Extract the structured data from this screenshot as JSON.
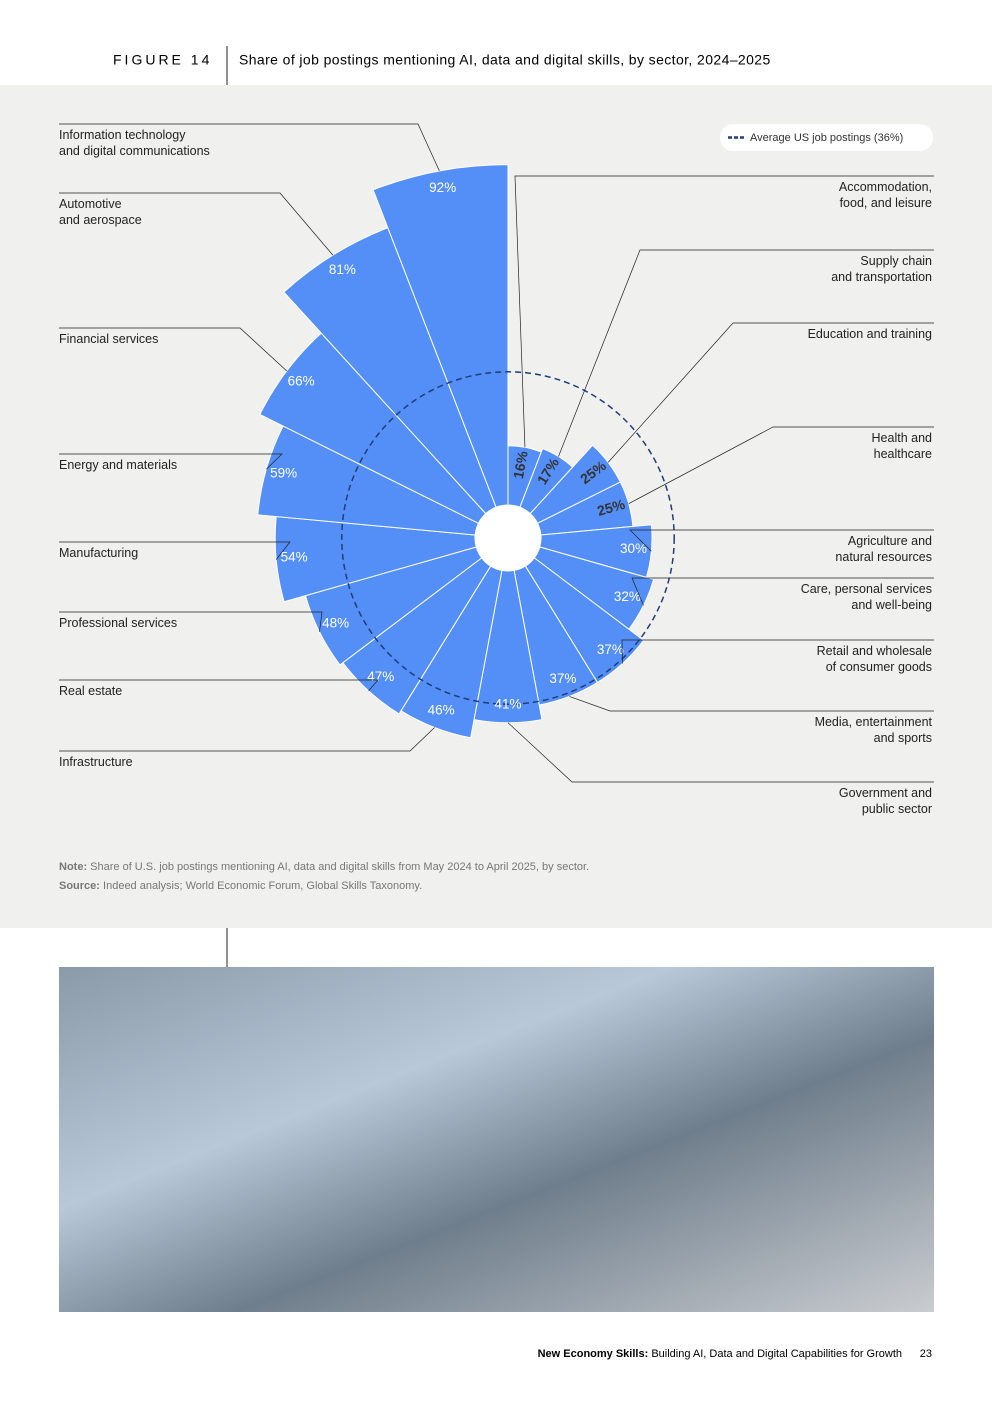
{
  "header": {
    "figure": "FIGURE 14",
    "title": "Share of job postings mentioning AI, data and digital skills, by sector, 2024–2025"
  },
  "chart_data": {
    "type": "polar-bar",
    "categories": [
      "Accommodation,\nfood, and leisure",
      "Supply chain\nand transportation",
      "Education and training",
      "Health and\nhealthcare",
      "Agriculture and\nnatural resources",
      "Care, personal services\nand well-being",
      "Retail and wholesale\nof consumer goods",
      "Media, entertainment\nand sports",
      "Government and\npublic sector",
      "Infrastructure",
      "Real estate",
      "Professional services",
      "Manufacturing",
      "Energy and materials",
      "Financial services",
      "Automotive\nand aerospace",
      "Information technology\nand digital communications"
    ],
    "values": [
      16,
      17,
      25,
      25,
      30,
      32,
      37,
      37,
      41,
      46,
      47,
      48,
      54,
      59,
      66,
      81,
      92
    ],
    "value_labels": [
      "16%",
      "17%",
      "25%",
      "25%",
      "30%",
      "32%",
      "37%",
      "37%",
      "41%",
      "46%",
      "47%",
      "48%",
      "54%",
      "59%",
      "66%",
      "81%",
      "92%"
    ],
    "color": "#548ff7",
    "rlim": [
      0,
      100
    ],
    "reference": {
      "label": "Average US job postings (36%)",
      "value": 36,
      "color": "#1f3e7a"
    }
  },
  "note": {
    "label": "Note:",
    "text": "Share of U.S. job postings mentioning AI, data and digital skills from May 2024 to April 2025, by sector."
  },
  "source": {
    "label": "Source:",
    "text": "Indeed analysis; World Economic Forum, Global Skills Taxonomy."
  },
  "footer": {
    "title_bold": "New Economy Skills:",
    "title": "Building AI, Data and Digital Capabilities for Growth",
    "page": "23"
  }
}
